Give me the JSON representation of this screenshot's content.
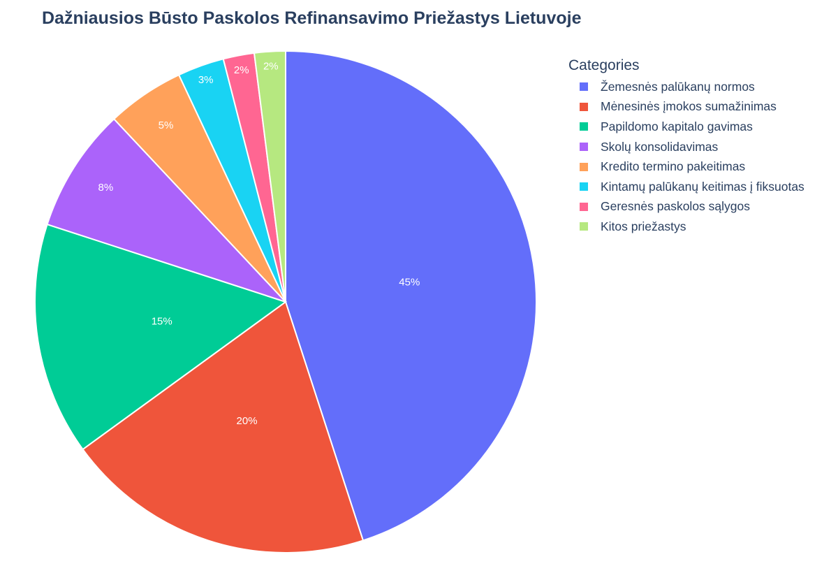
{
  "chart_data": {
    "type": "pie",
    "title": "Dažniausios Būsto Paskolos Refinansavimo Priežastys Lietuvoje",
    "legend_title": "Categories",
    "legend_position": "top-right",
    "slices": [
      {
        "label": "Žemesnės palūkanų normos",
        "value": 45,
        "text": "45%",
        "color": "#636efa"
      },
      {
        "label": "Mėnesinės įmokos sumažinimas",
        "value": 20,
        "text": "20%",
        "color": "#ef553b"
      },
      {
        "label": "Papildomo kapitalo gavimas",
        "value": 15,
        "text": "15%",
        "color": "#00cc96"
      },
      {
        "label": "Skolų konsolidavimas",
        "value": 8,
        "text": "8%",
        "color": "#ab63fa"
      },
      {
        "label": "Kredito termino pakeitimas",
        "value": 5,
        "text": "5%",
        "color": "#ffa15a"
      },
      {
        "label": "Kintamų palūkanų keitimas į fiksuotas",
        "value": 3,
        "text": "3%",
        "color": "#19d3f3"
      },
      {
        "label": "Geresnės paskolos sąlygos",
        "value": 2,
        "text": "2%",
        "color": "#ff6692"
      },
      {
        "label": "Kitos priežastys",
        "value": 2,
        "text": "2%",
        "color": "#b6e880"
      }
    ]
  }
}
